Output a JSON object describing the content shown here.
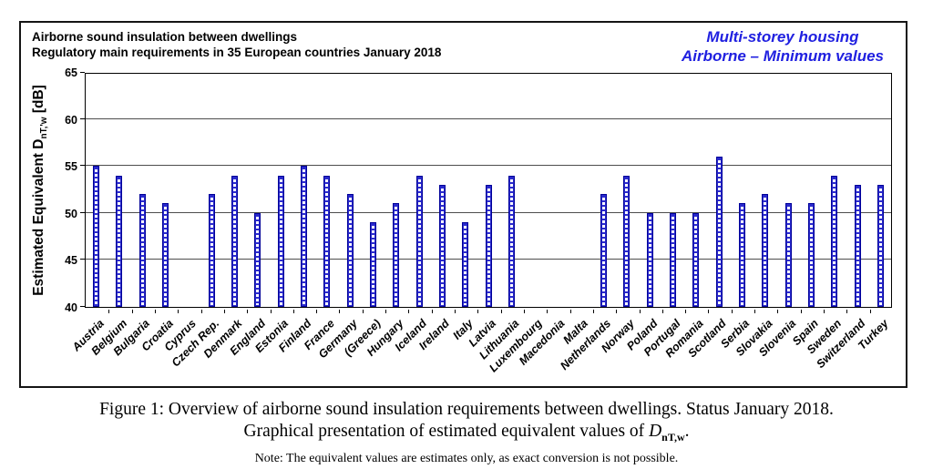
{
  "chart": {
    "title_line1": "Airborne sound insulation between dwellings",
    "title_line2": "Regulatory main requirements in 35 European countries January 2018",
    "right_title": {
      "line1": "Multi-storey housing",
      "line2": "Airborne – Minimum values",
      "color": "#2020e0"
    },
    "y_axis": {
      "prefix": "Estimated Equivalent D",
      "sub": "nT,'w",
      "suffix": " [dB]"
    },
    "bar_color": "#2a2acc",
    "bar_border_color": "#000099"
  },
  "chart_data": {
    "type": "bar",
    "title": "Airborne sound insulation between dwellings — Regulatory main requirements in 35 European countries January 2018",
    "right_label": "Multi-storey housing / Airborne – Minimum values",
    "xlabel": "",
    "ylabel": "Estimated Equivalent DnT,'w [dB]",
    "ylim": [
      40,
      65
    ],
    "yticks": [
      40,
      45,
      50,
      55,
      60,
      65
    ],
    "grid": true,
    "legend": "none",
    "categories": [
      "Austria",
      "Belgium",
      "Bulgaria",
      "Croatia",
      "Cyprus",
      "Czech Rep.",
      "Denmark",
      "England",
      "Estonia",
      "Finland",
      "France",
      "Germany",
      "(Greece)",
      "Hungary",
      "Iceland",
      "Ireland",
      "Italy",
      "Latvia",
      "Lithuania",
      "Luxembourg",
      "Macedonia",
      "Malta",
      "Netherlands",
      "Norway",
      "Poland",
      "Portugal",
      "Romania",
      "Scotland",
      "Serbia",
      "Slovakia",
      "Slovenia",
      "Spain",
      "Sweden",
      "Switzerland",
      "Turkey"
    ],
    "values": [
      55,
      54,
      52,
      51,
      null,
      52,
      54,
      50,
      54,
      55,
      54,
      52,
      49,
      51,
      54,
      53,
      49,
      53,
      54,
      null,
      null,
      null,
      52,
      54,
      50,
      50,
      50,
      56,
      51,
      52,
      51,
      51,
      54,
      53,
      53
    ]
  },
  "caption": {
    "line1": "Figure 1: Overview of airborne sound insulation requirements between dwellings. Status January 2018.",
    "line2_prefix": "Graphical presentation of estimated equivalent values of ",
    "line2_symbol": "D",
    "line2_sub": "nT,w",
    "line2_suffix": ".",
    "note": "Note: The equivalent values are estimates only, as exact conversion is not possible."
  }
}
